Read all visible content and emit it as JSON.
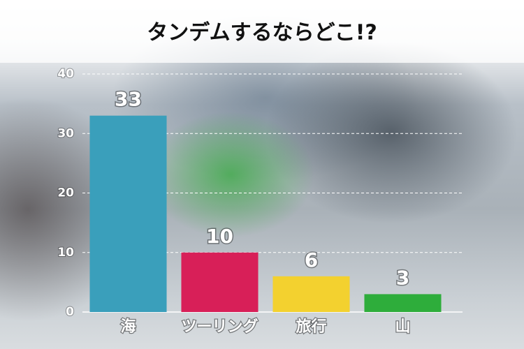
{
  "chart_data": {
    "type": "bar",
    "title": "タンデムするならどこ!?",
    "categories": [
      "海",
      "ツーリング",
      "旅行",
      "山"
    ],
    "values": [
      33,
      10,
      6,
      3
    ],
    "colors": [
      "#3a9fbb",
      "#d81f58",
      "#f3d12f",
      "#2ead3b"
    ],
    "ylim": [
      0,
      40
    ],
    "yticks": [
      0,
      10,
      20,
      30,
      40
    ],
    "grid": true
  }
}
